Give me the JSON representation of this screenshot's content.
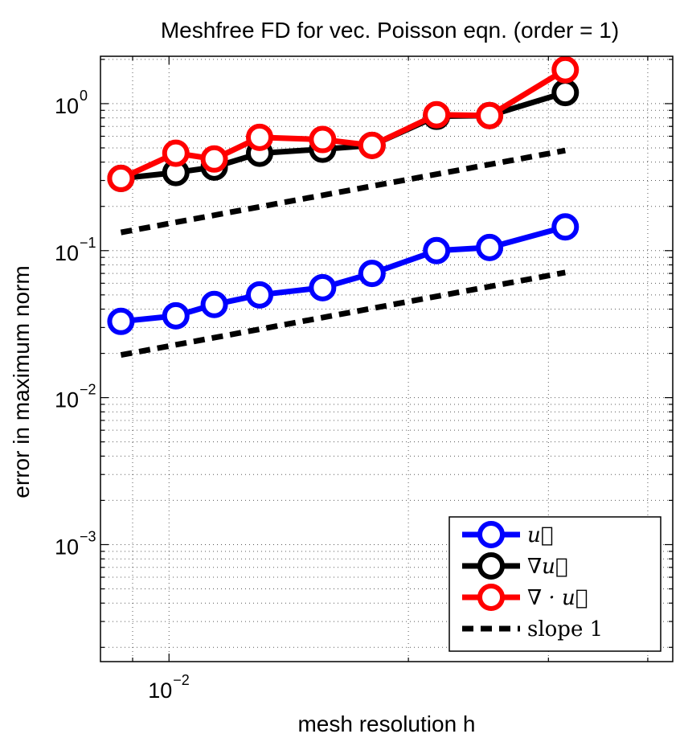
{
  "chart_data": {
    "type": "line",
    "title": "Meshfree FD for vec. Poisson eqn. (order = 1)",
    "xlabel": "mesh resolution h",
    "ylabel": "error in maximum norm",
    "x_scale": "log",
    "y_scale": "log",
    "xlim": [
      0.0082,
      0.043
    ],
    "ylim": [
      0.00016,
      2.1
    ],
    "x_ticks": [
      {
        "value": 0.01,
        "base": "10",
        "exp": "−2"
      }
    ],
    "y_ticks": [
      {
        "value": 1,
        "base": "10",
        "exp": "0"
      },
      {
        "value": 0.1,
        "base": "10",
        "exp": "−1"
      },
      {
        "value": 0.01,
        "base": "10",
        "exp": "−2"
      },
      {
        "value": 0.001,
        "base": "10",
        "exp": "−3"
      }
    ],
    "grid": true,
    "legend_position": "bottom-right",
    "series": [
      {
        "name": "u",
        "legend_label": "u⃗",
        "color": "#0000ff",
        "marker": "circle",
        "x": [
          0.0087,
          0.0102,
          0.0114,
          0.013,
          0.0156,
          0.018,
          0.0217,
          0.0253,
          0.0315
        ],
        "y": [
          0.033,
          0.036,
          0.043,
          0.05,
          0.056,
          0.07,
          0.1,
          0.105,
          0.145
        ]
      },
      {
        "name": "grad u",
        "legend_label": "∇u⃗",
        "color": "#000000",
        "marker": "circle",
        "x": [
          0.0087,
          0.0102,
          0.0114,
          0.013,
          0.0156,
          0.018,
          0.0217,
          0.0253,
          0.0315
        ],
        "y": [
          0.31,
          0.34,
          0.37,
          0.46,
          0.49,
          0.52,
          0.82,
          0.83,
          1.19
        ]
      },
      {
        "name": "div u",
        "legend_label": "∇ · u⃗",
        "color": "#ff0000",
        "marker": "circle",
        "x": [
          0.0087,
          0.0102,
          0.0114,
          0.013,
          0.0156,
          0.018,
          0.0217,
          0.0253,
          0.0315
        ],
        "y": [
          0.31,
          0.46,
          0.42,
          0.59,
          0.57,
          0.52,
          0.84,
          0.83,
          1.7
        ]
      },
      {
        "name": "slope 1 (upper)",
        "legend_label": "slope 1",
        "color": "#000000",
        "style": "dashed",
        "x": [
          0.0087,
          0.0315
        ],
        "y": [
          0.133,
          0.48
        ]
      },
      {
        "name": "slope 1 (lower)",
        "color": "#000000",
        "style": "dashed",
        "x": [
          0.0087,
          0.0315
        ],
        "y": [
          0.0195,
          0.071
        ]
      }
    ]
  }
}
